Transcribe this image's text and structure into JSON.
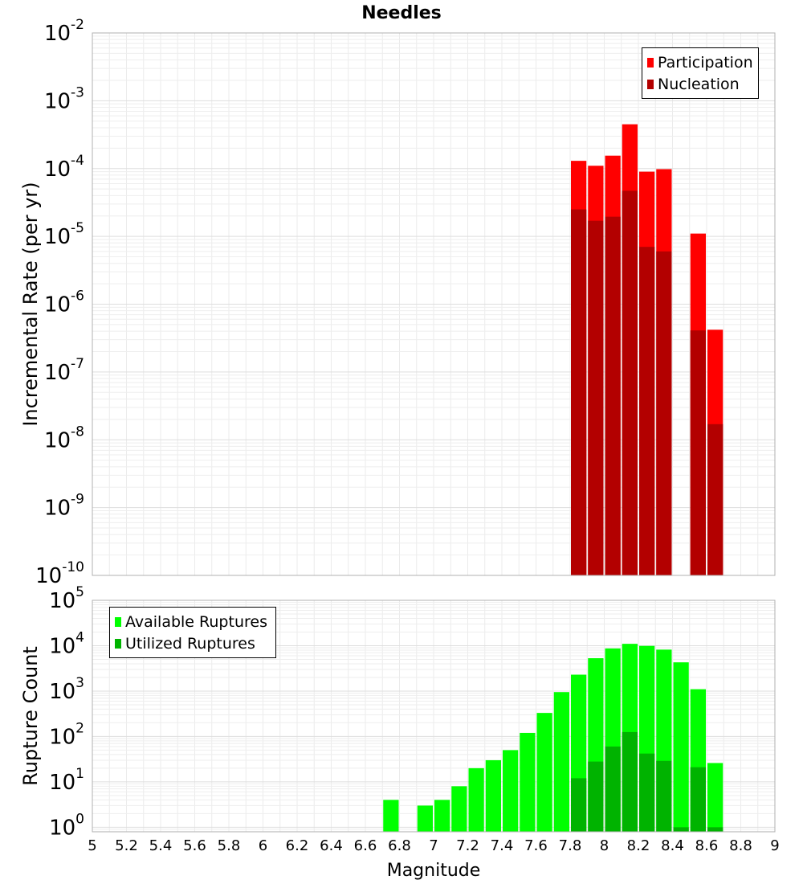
{
  "chart_data": [
    {
      "type": "bar",
      "title": "Needles",
      "xlabel": "",
      "ylabel": "Incremental Rate (per yr)",
      "yscale": "log",
      "ylim_exp": [
        -10,
        -2
      ],
      "xlim": [
        5,
        9
      ],
      "legend_position": "top-right",
      "bin_centers": [
        7.85,
        7.95,
        8.05,
        8.15,
        8.25,
        8.35,
        8.55,
        8.65
      ],
      "series": [
        {
          "name": "Participation",
          "color": "#ff0000",
          "values": [
            0.00013,
            0.00011,
            0.000155,
            0.00045,
            9e-05,
            9.8e-05,
            1.1e-05,
            4.2e-07
          ]
        },
        {
          "name": "Nucleation",
          "color": "#b30000",
          "values": [
            2.5e-05,
            1.7e-05,
            1.95e-05,
            4.7e-05,
            7e-06,
            6e-06,
            4.1e-07,
            1.7e-08
          ]
        }
      ]
    },
    {
      "type": "bar",
      "xlabel": "Magnitude",
      "ylabel": "Rupture Count",
      "yscale": "log",
      "ylim_exp": [
        -0.1,
        5
      ],
      "xlim": [
        5,
        9
      ],
      "legend_position": "top-left",
      "x_ticks": [
        "5",
        "5.2",
        "5.4",
        "5.6",
        "5.8",
        "6",
        "6.2",
        "6.4",
        "6.6",
        "6.8",
        "7",
        "7.2",
        "7.4",
        "7.6",
        "7.8",
        "8",
        "8.2",
        "8.4",
        "8.6",
        "8.8",
        "9"
      ],
      "bin_centers": [
        6.75,
        6.95,
        7.05,
        7.15,
        7.25,
        7.35,
        7.45,
        7.55,
        7.65,
        7.75,
        7.85,
        7.95,
        8.05,
        8.15,
        8.25,
        8.35,
        8.45,
        8.55,
        8.65
      ],
      "series": [
        {
          "name": "Available Ruptures",
          "color": "#00ff00",
          "values": [
            4,
            3,
            4,
            8,
            20,
            30,
            50,
            120,
            330,
            950,
            2300,
            5300,
            8700,
            11000,
            9900,
            8200,
            4300,
            1100,
            26
          ]
        },
        {
          "name": "Utilized Ruptures",
          "color": "#00b300",
          "values": [
            null,
            null,
            null,
            null,
            null,
            null,
            null,
            null,
            null,
            null,
            12,
            28,
            60,
            125,
            42,
            29,
            1,
            21,
            1
          ]
        }
      ]
    }
  ]
}
